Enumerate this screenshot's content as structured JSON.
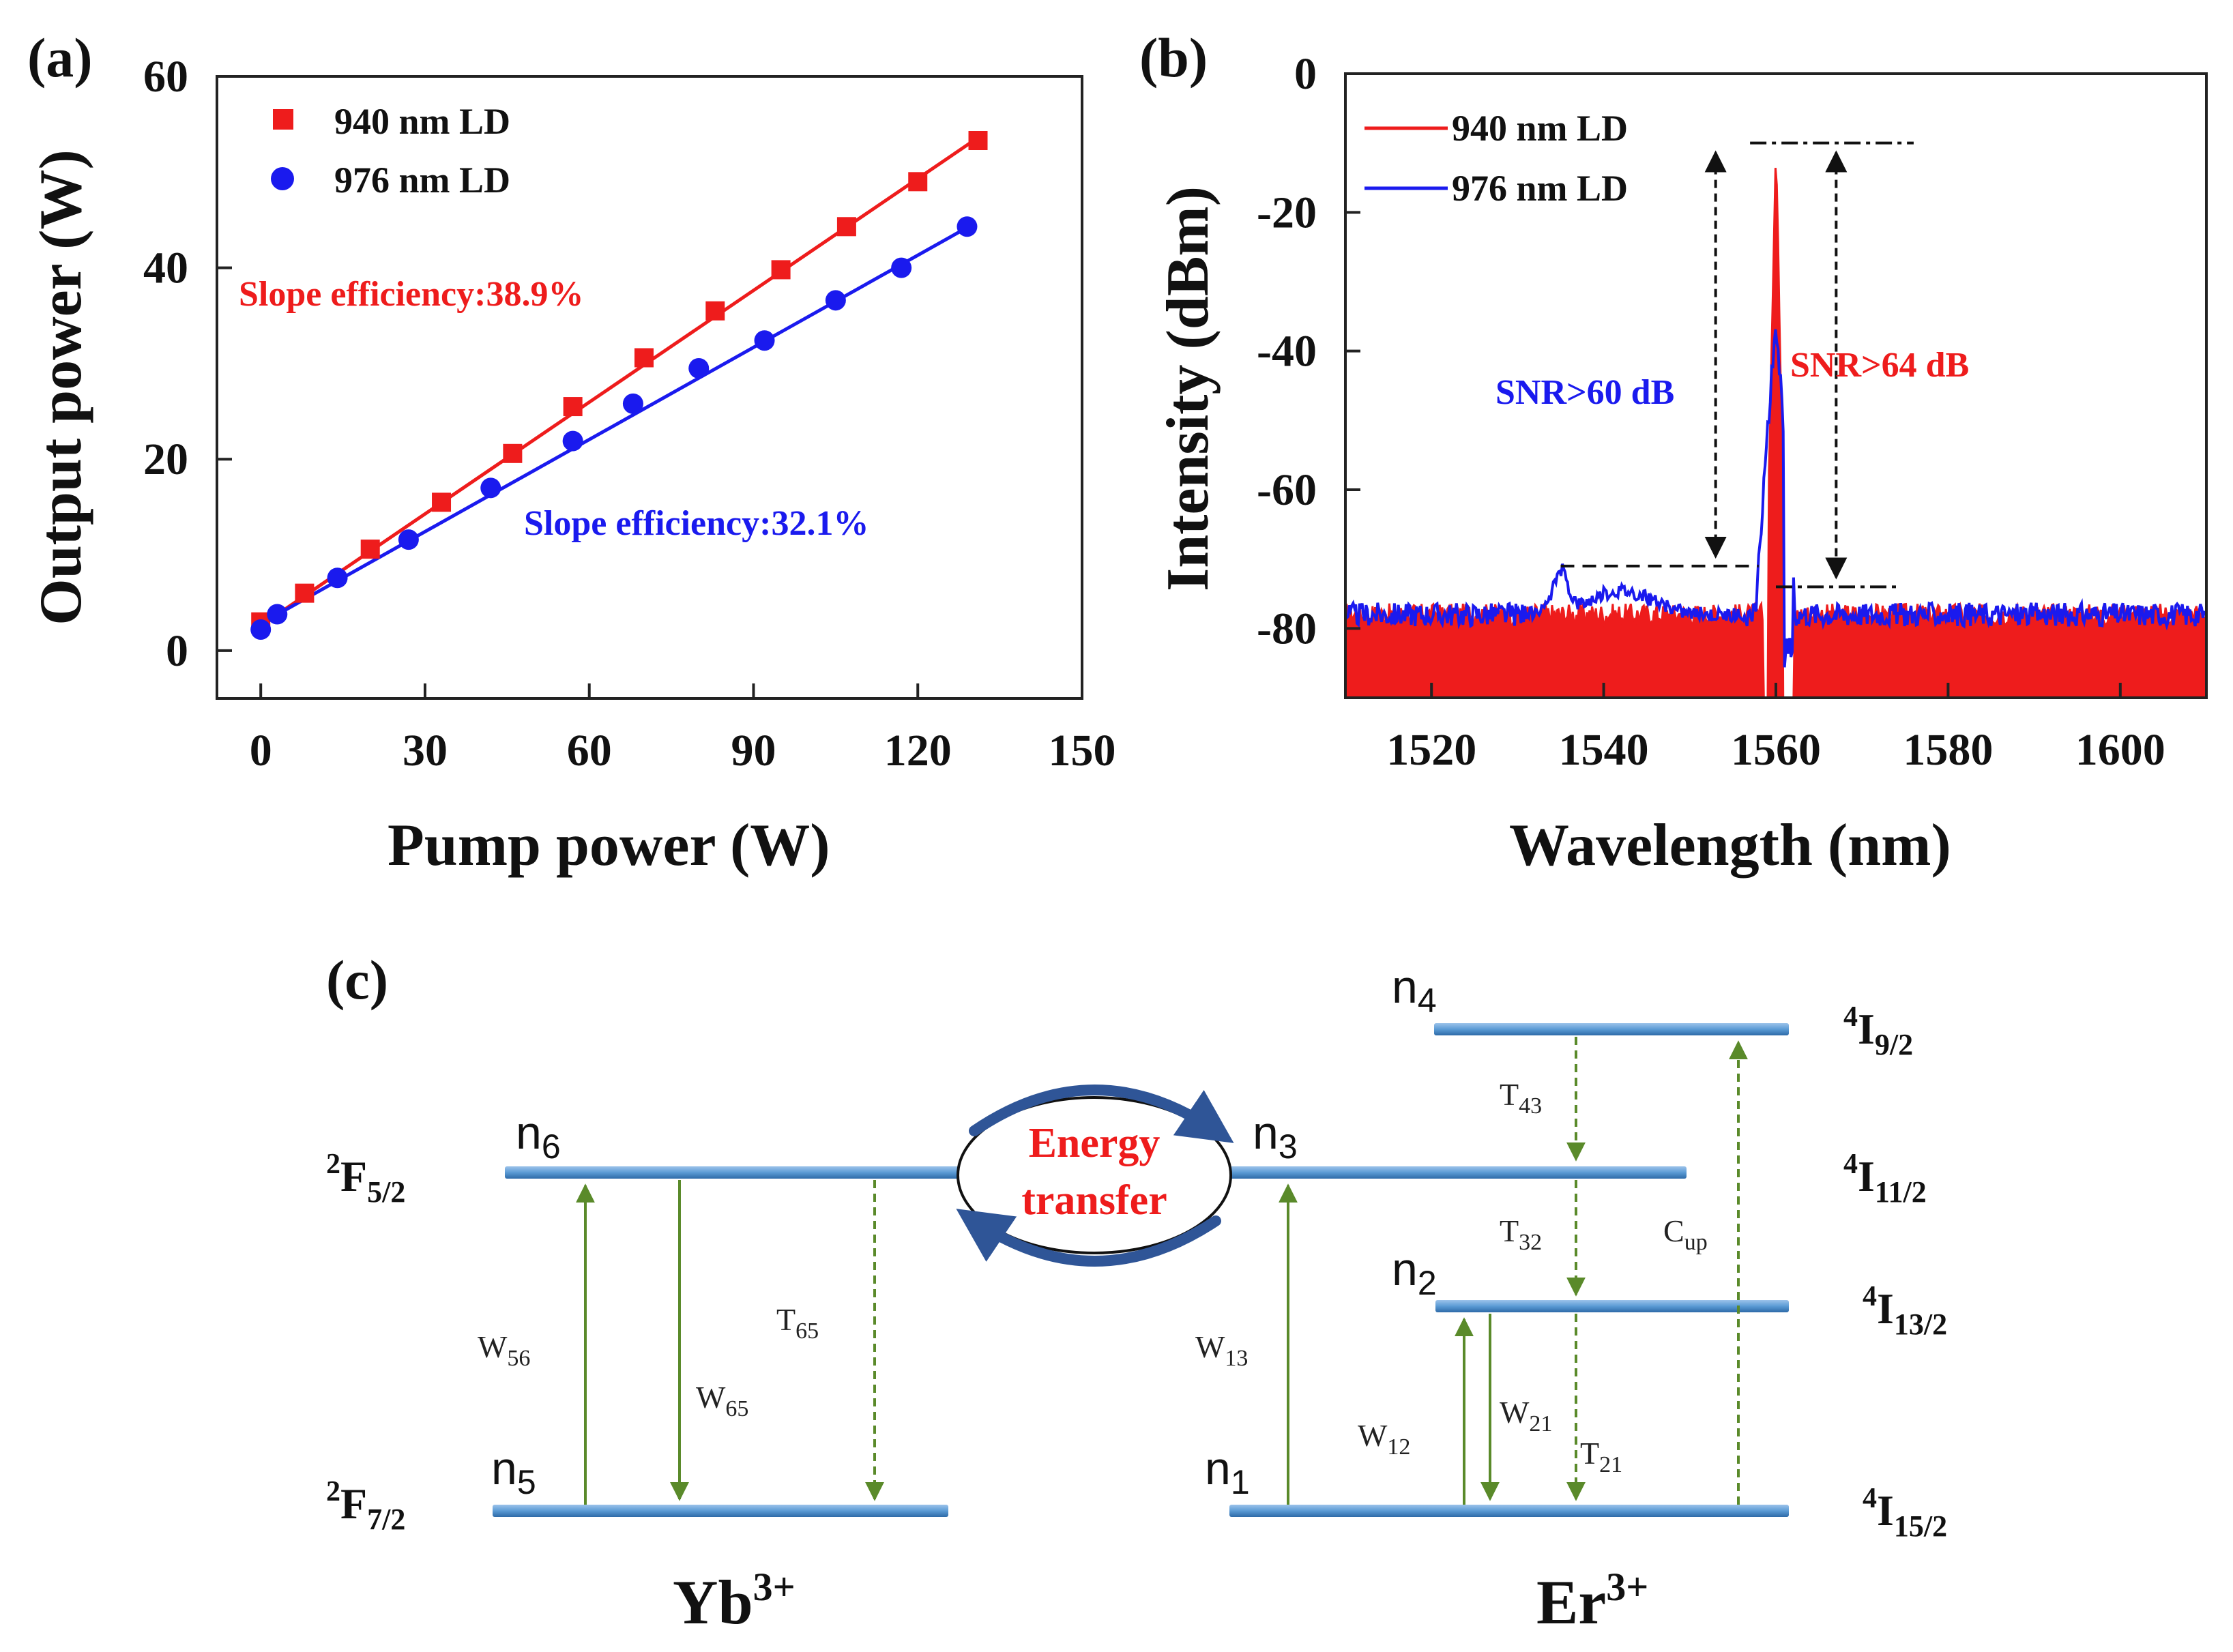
{
  "panel_labels": {
    "a": "(a)",
    "b": "(b)",
    "c": "(c)"
  },
  "chart_data": [
    {
      "id": "a",
      "type": "scatter",
      "xlabel": "Pump power (W)",
      "ylabel": "Output power (W)",
      "xlim": [
        -8,
        150
      ],
      "ylim": [
        -5,
        60
      ],
      "xticks": [
        0,
        30,
        60,
        90,
        120,
        150
      ],
      "yticks": [
        0,
        20,
        40,
        60
      ],
      "legend_position": "top-left",
      "colors": {
        "s940": "#ee1c1c",
        "s976": "#1a1aee"
      },
      "series": [
        {
          "name": "940 nm LD",
          "marker": "square",
          "x": [
            0,
            8,
            20,
            33,
            46,
            57,
            70,
            83,
            95,
            107,
            120,
            131
          ],
          "y": [
            3.0,
            6.0,
            10.6,
            15.5,
            20.6,
            25.5,
            30.6,
            35.5,
            39.8,
            44.3,
            49.0,
            53.3
          ],
          "fit": [
            [
              0,
              2.6
            ],
            [
              131,
              53.6
            ]
          ]
        },
        {
          "name": "976 nm LD",
          "marker": "circle",
          "x": [
            0,
            3,
            14,
            27,
            42,
            57,
            68,
            80,
            92,
            105,
            117,
            129
          ],
          "y": [
            2.2,
            3.8,
            7.6,
            11.6,
            17.0,
            21.9,
            25.8,
            29.5,
            32.4,
            36.6,
            40.0,
            44.3
          ],
          "fit": [
            [
              0,
              2.8
            ],
            [
              129,
              44.2
            ]
          ]
        }
      ],
      "annotations": [
        {
          "text": "Slope efficiency:38.9%",
          "color": "#ee1c1c"
        },
        {
          "text": "Slope efficiency:32.1%",
          "color": "#1a1aee"
        }
      ]
    },
    {
      "id": "b",
      "type": "line",
      "xlabel": "Wavelength (nm)",
      "ylabel": "Intensity (dBm)",
      "xlim": [
        1510,
        1610
      ],
      "ylim": [
        -90,
        0
      ],
      "xticks": [
        1520,
        1540,
        1560,
        1580,
        1600
      ],
      "yticks": [
        0,
        -20,
        -40,
        -60,
        -80
      ],
      "noise_floor_dBm": -78,
      "legend_position": "top-left",
      "series": [
        {
          "name": "940 nm LD",
          "color": "#ee1c1c",
          "peak_wavelength_nm": 1560,
          "peak_dBm": -10,
          "floor_dBm": -78
        },
        {
          "name": "976 nm LD",
          "color": "#1a1aee",
          "peak_wavelength_nm": 1560,
          "peak_dBm": -35,
          "asef_peak_wavelength_nm": 1535,
          "asef_peak_dBm": -71,
          "floor_dBm": -78
        }
      ],
      "reference_levels_dBm": {
        "top": -10,
        "blue_base": -71,
        "red_base": -74
      },
      "annotations": [
        {
          "text": "SNR>60 dB",
          "color": "#1a1aee"
        },
        {
          "text": "SNR>64 dB",
          "color": "#ee1c1c"
        }
      ]
    }
  ],
  "diagram": {
    "ions": {
      "yb": "Yb",
      "yb_charge": "3+",
      "er": "Er",
      "er_charge": "3+"
    },
    "yb_terms": [
      {
        "base": "2",
        "letter": "F",
        "sub": "5/2"
      },
      {
        "base": "2",
        "letter": "F",
        "sub": "7/2"
      }
    ],
    "er_terms": [
      {
        "base": "4",
        "letter": "I",
        "sub": "9/2"
      },
      {
        "base": "4",
        "letter": "I",
        "sub": "11/2"
      },
      {
        "base": "4",
        "letter": "I",
        "sub": "13/2"
      },
      {
        "base": "4",
        "letter": "I",
        "sub": "15/2"
      }
    ],
    "levels": {
      "n6": {
        "n": "n",
        "i": "6"
      },
      "n5": {
        "n": "n",
        "i": "5"
      },
      "n4": {
        "n": "n",
        "i": "4"
      },
      "n3": {
        "n": "n",
        "i": "3"
      },
      "n2": {
        "n": "n",
        "i": "2"
      },
      "n1": {
        "n": "n",
        "i": "1"
      }
    },
    "rates": {
      "W56": {
        "s": "W",
        "i": "56"
      },
      "W65": {
        "s": "W",
        "i": "65"
      },
      "T65": {
        "s": "T",
        "i": "65"
      },
      "W13": {
        "s": "W",
        "i": "13"
      },
      "W12": {
        "s": "W",
        "i": "12"
      },
      "W21": {
        "s": "W",
        "i": "21"
      },
      "T21": {
        "s": "T",
        "i": "21"
      },
      "T43": {
        "s": "T",
        "i": "43"
      },
      "T32": {
        "s": "T",
        "i": "32"
      },
      "Cup": {
        "s": "C",
        "i": "up"
      }
    },
    "energy_transfer": {
      "line1": "Energy",
      "line2": "transfer"
    },
    "colors": {
      "level_bar": "#5b9bd5",
      "arrow": "#5a8a2a",
      "et_text": "#ee1c1c",
      "et_arrow": "#2f5597"
    }
  }
}
